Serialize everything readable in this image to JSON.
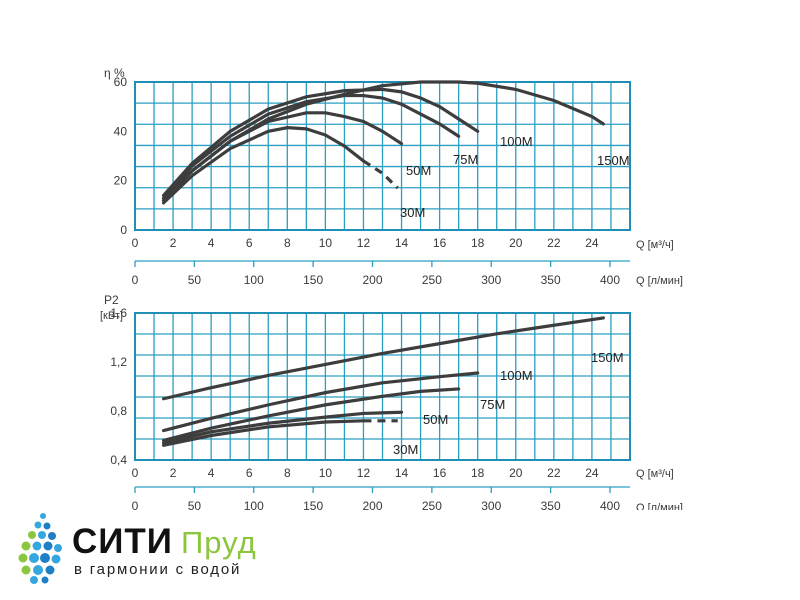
{
  "chart_data": [
    {
      "type": "line",
      "id": "efficiency",
      "ylabel": "η %",
      "ylim": [
        0,
        60
      ],
      "yticks": [
        0,
        20,
        40,
        60
      ],
      "xlim": [
        0,
        26
      ],
      "xticks": [
        0,
        2,
        4,
        6,
        8,
        10,
        12,
        14,
        16,
        18,
        20,
        22,
        24
      ],
      "xlabel": "Q [м³/ч]",
      "x2ticks": [
        0,
        50,
        100,
        150,
        200,
        250,
        300,
        350,
        400
      ],
      "x2label": "Q [л/мин]",
      "grid": true,
      "series": [
        {
          "name": "30M",
          "x": [
            1.5,
            3,
            5,
            7,
            8,
            9,
            10,
            11,
            12
          ],
          "y": [
            11,
            22,
            33,
            40,
            41.5,
            41,
            38.5,
            34,
            28
          ],
          "dash_from": 12,
          "x_dash": [
            12,
            13,
            13.8
          ],
          "y_dash": [
            28,
            23,
            17
          ]
        },
        {
          "name": "50M",
          "x": [
            1.5,
            3,
            5,
            7,
            9,
            10,
            11,
            12,
            13,
            14
          ],
          "y": [
            12,
            24,
            36,
            44,
            47.5,
            47.5,
            46,
            44,
            40,
            35
          ]
        },
        {
          "name": "75M",
          "x": [
            1.5,
            3,
            5,
            7,
            9,
            11,
            12,
            13,
            14,
            15,
            16,
            17
          ],
          "y": [
            13,
            26,
            38,
            47,
            52,
            54.5,
            54.5,
            53.5,
            51,
            47,
            43,
            38
          ]
        },
        {
          "name": "100M",
          "x": [
            1.5,
            3,
            5,
            7,
            9,
            11,
            13,
            14,
            15,
            16,
            17,
            18
          ],
          "y": [
            14,
            27,
            40,
            49,
            54,
            56.5,
            57,
            56,
            53.5,
            50,
            45,
            40
          ]
        },
        {
          "name": "150M",
          "x": [
            1.5,
            3,
            5,
            7,
            9,
            11,
            13,
            15,
            16,
            17,
            18,
            20,
            22,
            24,
            24.6
          ],
          "y": [
            12,
            24,
            36,
            45,
            51,
            55,
            58.5,
            60,
            60,
            60,
            59.5,
            57,
            52.5,
            46,
            43
          ]
        }
      ]
    },
    {
      "type": "line",
      "id": "power",
      "ylabel": "P2",
      "yunit": "[кВт]",
      "ylim": [
        0.4,
        1.6
      ],
      "yticks": [
        0.4,
        0.8,
        1.2,
        1.6
      ],
      "ytick_labels": [
        "0,4",
        "0,8",
        "1,2",
        "1,6"
      ],
      "xlim": [
        0,
        26
      ],
      "xticks": [
        0,
        2,
        4,
        6,
        8,
        10,
        12,
        14,
        16,
        18,
        20,
        22,
        24
      ],
      "xlabel": "Q [м³/ч]",
      "x2ticks": [
        0,
        50,
        100,
        150,
        200,
        250,
        300,
        350,
        400
      ],
      "x2label": "Q [л/мин]",
      "grid": true,
      "series": [
        {
          "name": "30M",
          "x": [
            1.5,
            4,
            7,
            10,
            12
          ],
          "y": [
            0.52,
            0.6,
            0.67,
            0.71,
            0.72
          ],
          "x_dash": [
            12,
            13.8
          ],
          "y_dash": [
            0.72,
            0.72
          ]
        },
        {
          "name": "50M",
          "x": [
            1.5,
            4,
            7,
            10,
            12,
            14
          ],
          "y": [
            0.54,
            0.63,
            0.7,
            0.75,
            0.78,
            0.79
          ]
        },
        {
          "name": "75M",
          "x": [
            1.5,
            4,
            7,
            10,
            13,
            15,
            17
          ],
          "y": [
            0.56,
            0.66,
            0.76,
            0.85,
            0.92,
            0.96,
            0.98
          ]
        },
        {
          "name": "100M",
          "x": [
            1.5,
            4,
            7,
            10,
            13,
            16,
            18
          ],
          "y": [
            0.64,
            0.74,
            0.85,
            0.95,
            1.03,
            1.08,
            1.11
          ]
        },
        {
          "name": "150M",
          "x": [
            1.5,
            4,
            7,
            10,
            13,
            16,
            19,
            22,
            24.6
          ],
          "y": [
            0.9,
            0.99,
            1.09,
            1.18,
            1.27,
            1.35,
            1.43,
            1.5,
            1.56
          ]
        }
      ]
    }
  ],
  "logo": {
    "brand_main": "СИТИ",
    "brand_second": "Пруд",
    "tagline": "в гармонии с водой",
    "colors": {
      "drops_dark": "#1e7fc4",
      "drops_mid": "#35a7de",
      "drops_light": "#8cc63f",
      "brand_second": "#8cc63f"
    }
  },
  "colors": {
    "grid": "#2a9fc2",
    "curve": "#3d3d3d"
  }
}
